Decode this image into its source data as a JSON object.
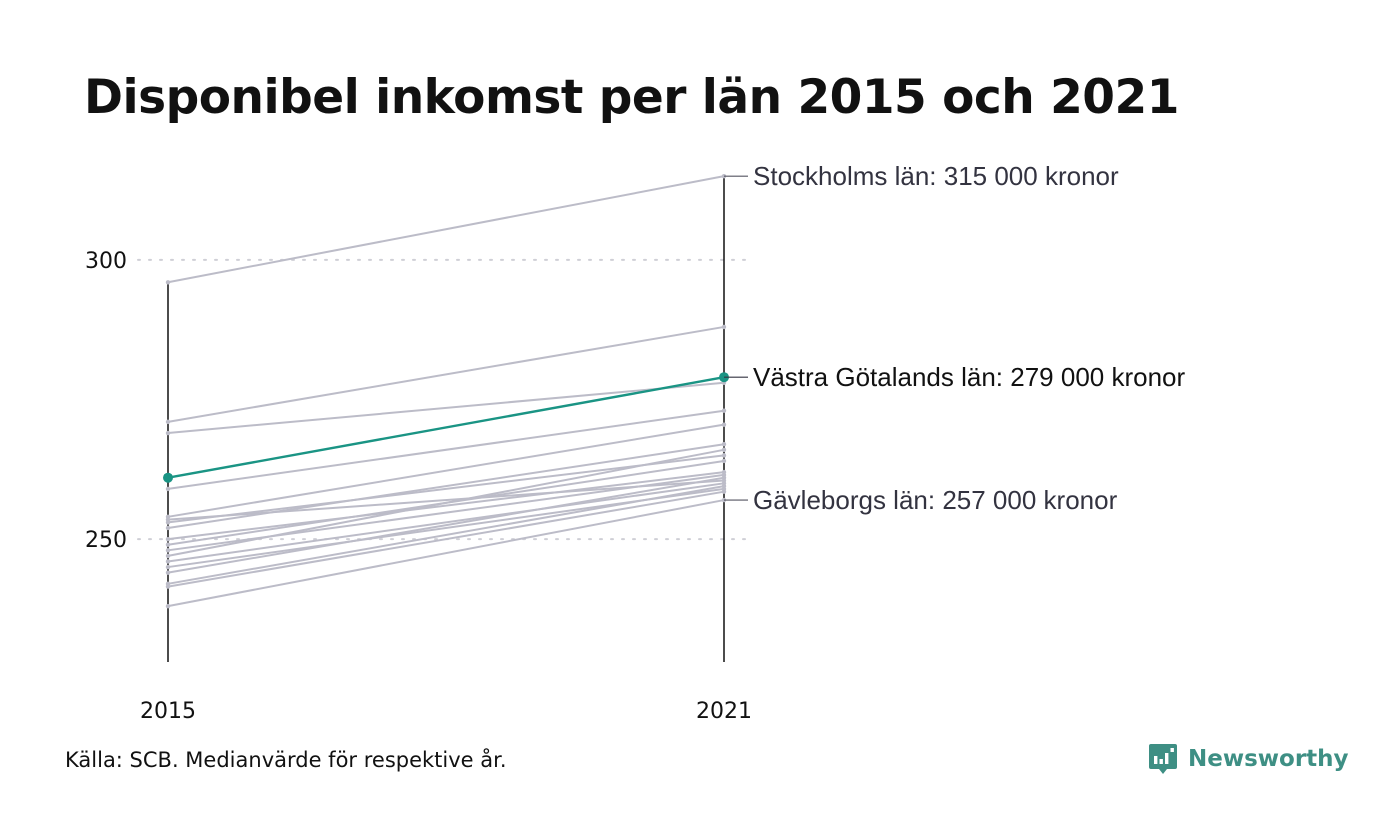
{
  "title": "Disponibel inkomst per län 2015 och 2021",
  "source": "Källa: SCB. Medianvärde för respektive år.",
  "brand": {
    "name": "Newsworthy",
    "icon": "newsworthy-logo-icon",
    "color": "#3e8f84"
  },
  "chart_data": {
    "type": "line",
    "x": [
      "2015",
      "2021"
    ],
    "ylim": [
      228,
      317
    ],
    "yticks": [
      250,
      300
    ],
    "grid": "horizontal-dotted",
    "colors": {
      "highlight": "#1a9484",
      "other": "#bcbcc8",
      "axis": "#111111",
      "label": "#333340"
    },
    "series": [
      {
        "name": "Stockholms län",
        "values": [
          296,
          315
        ],
        "color": "#bcbcc8",
        "label": "Stockholms län: 315 000 kronor"
      },
      {
        "name": "Västra Götalands län",
        "values": [
          261,
          279
        ],
        "color": "#1a9484",
        "highlight": true,
        "label": "Västra Götalands län: 279 000 kronor"
      },
      {
        "name": "Gävleborgs län",
        "values": [
          238,
          257
        ],
        "color": "#bcbcc8",
        "label": "Gävleborgs län: 257 000 kronor"
      },
      {
        "values": [
          271,
          288
        ],
        "color": "#bcbcc8"
      },
      {
        "values": [
          269,
          278
        ],
        "color": "#bcbcc8"
      },
      {
        "values": [
          259,
          273
        ],
        "color": "#bcbcc8"
      },
      {
        "values": [
          254,
          270.5
        ],
        "color": "#bcbcc8"
      },
      {
        "values": [
          253,
          265
        ],
        "color": "#bcbcc8"
      },
      {
        "values": [
          252,
          267
        ],
        "color": "#bcbcc8"
      },
      {
        "values": [
          250,
          262
        ],
        "color": "#bcbcc8"
      },
      {
        "values": [
          249,
          264
        ],
        "color": "#bcbcc8"
      },
      {
        "values": [
          247,
          266
        ],
        "color": "#bcbcc8"
      },
      {
        "values": [
          246,
          260
        ],
        "color": "#bcbcc8"
      },
      {
        "values": [
          245,
          259
        ],
        "color": "#bcbcc8"
      },
      {
        "values": [
          244,
          261
        ],
        "color": "#bcbcc8"
      },
      {
        "values": [
          242,
          259.5
        ],
        "color": "#bcbcc8"
      },
      {
        "values": [
          241.5,
          258.5
        ],
        "color": "#bcbcc8"
      },
      {
        "values": [
          253.5,
          260.5
        ],
        "color": "#bcbcc8"
      },
      {
        "values": [
          248,
          261.5
        ],
        "color": "#bcbcc8"
      }
    ]
  }
}
